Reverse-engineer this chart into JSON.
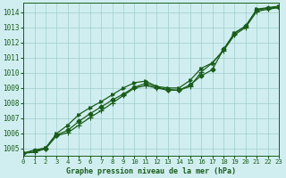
{
  "bg_color": "#d0eef0",
  "grid_color": "#a0cccc",
  "line_color": "#1a5c1a",
  "title": "Graphe pression niveau de la mer (hPa)",
  "xticks": [
    0,
    1,
    2,
    3,
    4,
    5,
    6,
    7,
    8,
    9,
    10,
    11,
    12,
    13,
    14,
    15,
    16,
    17,
    18,
    19,
    20,
    21,
    22,
    23
  ],
  "yticks": [
    1005,
    1006,
    1007,
    1008,
    1009,
    1010,
    1011,
    1012,
    1013,
    1014
  ],
  "ylim": [
    1004.55,
    1014.6
  ],
  "xlim": [
    0,
    23
  ],
  "series1_x": [
    0,
    1,
    2,
    3,
    4,
    5,
    6,
    7,
    8,
    9,
    10,
    11,
    12,
    13,
    14,
    15,
    16,
    17,
    18,
    19,
    20,
    21,
    22,
    23
  ],
  "series1_y": [
    1004.7,
    1004.85,
    1005.0,
    1005.9,
    1006.2,
    1006.8,
    1007.3,
    1007.75,
    1008.2,
    1008.6,
    1009.05,
    1009.3,
    1009.05,
    1008.9,
    1008.85,
    1009.2,
    1009.8,
    1010.2,
    1011.55,
    1012.6,
    1013.1,
    1014.15,
    1014.25,
    1014.35
  ],
  "series2_x": [
    0,
    1,
    2,
    3,
    4,
    5,
    6,
    7,
    8,
    9,
    10,
    11,
    12,
    13,
    14,
    15,
    16,
    17,
    18,
    19,
    20,
    21,
    22,
    23
  ],
  "series2_y": [
    1004.7,
    1004.9,
    1005.05,
    1006.0,
    1006.55,
    1007.25,
    1007.7,
    1008.1,
    1008.55,
    1009.0,
    1009.35,
    1009.45,
    1009.1,
    1009.0,
    1009.0,
    1009.5,
    1010.3,
    1010.65,
    1011.5,
    1012.65,
    1013.05,
    1014.2,
    1014.3,
    1014.4
  ],
  "series3_x": [
    0,
    1,
    2,
    3,
    4,
    5,
    6,
    7,
    8,
    9,
    10,
    11,
    12,
    13,
    14,
    15,
    16,
    17,
    18,
    19,
    20,
    21,
    22,
    23
  ],
  "series3_y": [
    1004.7,
    1004.75,
    1005.0,
    1005.85,
    1006.05,
    1006.55,
    1007.05,
    1007.5,
    1008.0,
    1008.5,
    1009.0,
    1009.15,
    1009.0,
    1008.85,
    1008.85,
    1009.1,
    1010.05,
    1010.65,
    1011.45,
    1012.5,
    1013.0,
    1014.05,
    1014.2,
    1014.3
  ]
}
